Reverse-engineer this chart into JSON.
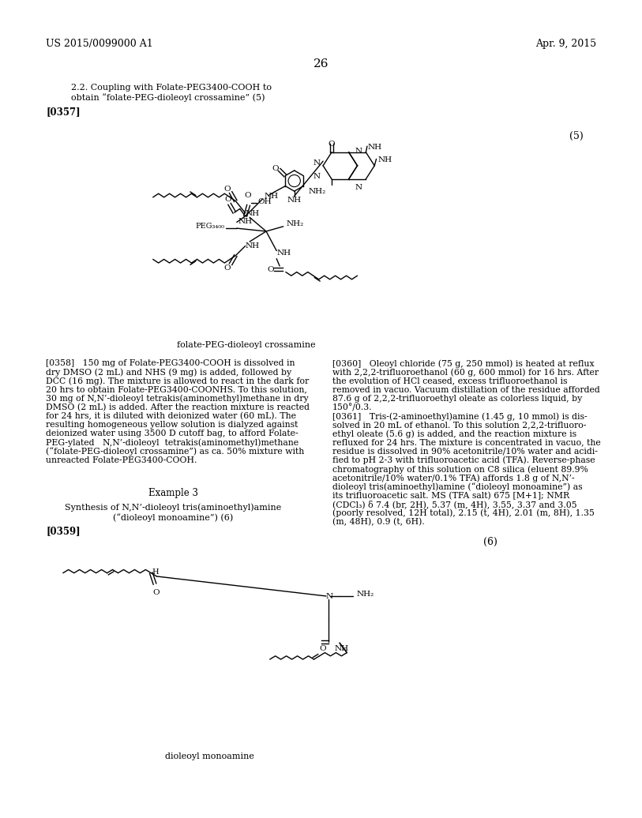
{
  "background_color": "#ffffff",
  "header_left": "US 2015/0099000 A1",
  "header_right": "Apr. 9, 2015",
  "page_number": "26",
  "sec_title1": "2.2. Coupling with Folate-PEG3400-COOH to",
  "sec_title2": "obtain “folate-PEG-dioleoyl crossamine” (5)",
  "tag0357": "[0357]",
  "tag0358_text": "[0358]   150 mg of Folate-PEG3400-COOH is dissolved in\ndry DMSO (2 mL) and NHS (9 mg) is added, followed by\nDCC (16 mg). The mixture is allowed to react in the dark for\n20 hrs to obtain Folate-PEG3400-COONHS. To this solution,\n30 mg of N,N’-dioleoyl tetrakis(aminomethyl)methane in dry\nDMSO (2 mL) is added. After the reaction mixture is reacted\nfor 24 hrs, it is diluted with deionized water (60 mL). The\nresulting homogeneous yellow solution is dialyzed against\ndeionized water using 3500 D cutoff bag, to afford Folate-\nPEG-ylated   N,N’-dioleoyl  tetrakis(aminomethyl)methane\n(“folate-PEG-dioleoyl crossamine”) as ca. 50% mixture with\nunreacted Folate-PEG3400-COOH.",
  "example3": "Example 3",
  "synth1": "Synthesis of N,N’-dioleoyl tris(aminoethyl)amine",
  "synth2": "(“dioleoyl monoamine”) (6)",
  "tag0359": "[0359]",
  "tag0360_text": "[0360]   Oleoyl chloride (75 g, 250 mmol) is heated at reflux\nwith 2,2,2-trifluoroethanol (60 g, 600 mmol) for 16 hrs. After\nthe evolution of HCl ceased, excess trifluoroethanol is\nremoved in vacuo. Vacuum distillation of the residue afforded\n87.6 g of 2,2,2-trifluoroethyl oleate as colorless liquid, by\n150°/0.3.",
  "tag0361_text": "[0361]   Tris-(2-aminoethyl)amine (1.45 g, 10 mmol) is dis-\nsolved in 20 mL of ethanol. To this solution 2,2,2-trifluoro-\nethyl oleate (5.6 g) is added, and the reaction mixture is\nrefluxed for 24 hrs. The mixture is concentrated in vacuo, the\nresidue is dissolved in 90% acetonitrile/10% water and acidi-\nfied to pH 2-3 with trifluoroacetic acid (TFA). Reverse-phase\nchromatography of this solution on C8 silica (eluent 89.9%\nacetonitrile/10% water/0.1% TFA) affords 1.8 g of N,N’-\ndioleoyl tris(aminoethyl)amine (“dioleoyl monoamine”) as\nits trifluoroacetic salt. MS (TFA salt) 675 [M+1]; NMR\n(CDCl₃) δ 7.4 (br, 2H), 5.37 (m, 4H), 3.55, 3.37 and 3.05\n(poorly resolved, 12H total), 2.15 (t, 4H), 2.01 (m, 8H), 1.35\n(m, 48H), 0.9 (t, 6H).",
  "caption5": "folate-PEG-dioleoyl crossamine",
  "caption6": "dioleoyl monoamine",
  "label5": "(5)",
  "label6": "(6)"
}
